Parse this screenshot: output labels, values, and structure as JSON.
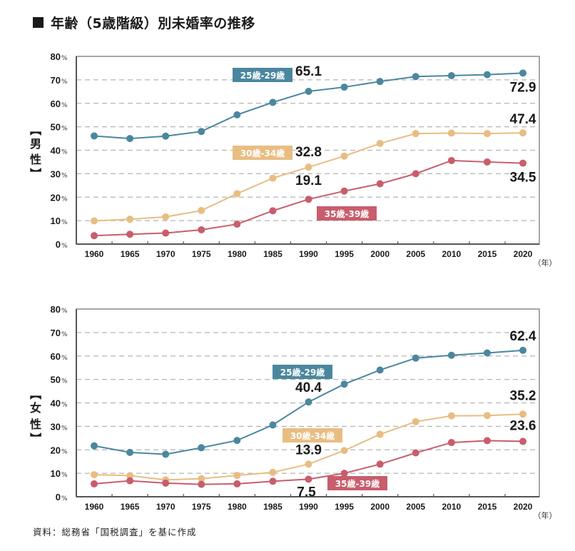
{
  "title": "年齢（5歳階級）別未婚率の推移",
  "source": "資料：総務省「国税調査」を基に作成",
  "colors": {
    "age_25_29": "#4a879f",
    "age_30_34": "#e8bd82",
    "age_35_39": "#c85d6c",
    "grid": "#b5b5b5",
    "frame": "#8a8a8a"
  },
  "chart_data": [
    {
      "type": "line",
      "title": "男性",
      "side_label": [
        "【",
        "男",
        "性",
        "】"
      ],
      "x": [
        1960,
        1965,
        1970,
        1975,
        1980,
        1985,
        1990,
        1995,
        2000,
        2005,
        2010,
        2015,
        2020
      ],
      "x_tick_labels": [
        "1960",
        "1965",
        "1970",
        "1975",
        "1980",
        "1985",
        "1990",
        "1995",
        "2000",
        "2005",
        "2010",
        "2015",
        "2020"
      ],
      "xlabel": "（年）",
      "ylabel": "%",
      "ylim": [
        0,
        80
      ],
      "y_ticks": [
        0,
        10,
        20,
        30,
        40,
        50,
        60,
        70,
        80
      ],
      "y_tick_labels": [
        "0",
        "10",
        "20",
        "30",
        "40",
        "50",
        "60",
        "70",
        "80"
      ],
      "y_tick_suffix": "%",
      "grid": "horizontal dashed",
      "series": [
        {
          "key": "age_25_29",
          "name": "25歳-29歳",
          "values": [
            46.1,
            45.0,
            46.0,
            48.0,
            55.1,
            60.4,
            65.1,
            66.9,
            69.3,
            71.4,
            71.8,
            72.2,
            72.9
          ],
          "annotations": [
            {
              "year": 1990,
              "text": "65.1"
            },
            {
              "year": 2020,
              "text": "72.9"
            }
          ]
        },
        {
          "key": "age_30_34",
          "name": "30歳-34歳",
          "values": [
            9.9,
            10.6,
            11.6,
            14.3,
            21.5,
            28.1,
            32.8,
            37.5,
            42.9,
            47.1,
            47.3,
            47.1,
            47.4
          ],
          "annotations": [
            {
              "year": 1990,
              "text": "32.8"
            },
            {
              "year": 2020,
              "text": "47.4"
            }
          ]
        },
        {
          "key": "age_35_39",
          "name": "35歳-39歳",
          "values": [
            3.6,
            4.2,
            4.7,
            6.1,
            8.5,
            14.2,
            19.1,
            22.6,
            25.7,
            30.0,
            35.6,
            35.0,
            34.5
          ],
          "annotations": [
            {
              "year": 1990,
              "text": "19.1"
            },
            {
              "year": 2020,
              "text": "34.5"
            }
          ]
        }
      ]
    },
    {
      "type": "line",
      "title": "女性",
      "side_label": [
        "【",
        "女",
        "性",
        "】"
      ],
      "x": [
        1960,
        1965,
        1970,
        1975,
        1980,
        1985,
        1990,
        1995,
        2000,
        2005,
        2010,
        2015,
        2020
      ],
      "x_tick_labels": [
        "1960",
        "1965",
        "1970",
        "1975",
        "1980",
        "1985",
        "1990",
        "1995",
        "2000",
        "2005",
        "2010",
        "2015",
        "2020"
      ],
      "xlabel": "（年）",
      "ylabel": "%",
      "ylim": [
        0,
        80
      ],
      "y_ticks": [
        0,
        10,
        20,
        30,
        40,
        50,
        60,
        70,
        80
      ],
      "y_tick_labels": [
        "0",
        "10",
        "20",
        "30",
        "40",
        "50",
        "60",
        "70",
        "80"
      ],
      "y_tick_suffix": "%",
      "grid": "horizontal dashed",
      "series": [
        {
          "key": "age_25_29",
          "name": "25歳-29歳",
          "values": [
            21.7,
            18.9,
            18.1,
            20.9,
            24.0,
            30.6,
            40.4,
            48.0,
            54.0,
            59.1,
            60.3,
            61.3,
            62.4
          ],
          "annotations": [
            {
              "year": 1990,
              "text": "40.4"
            },
            {
              "year": 2020,
              "text": "62.4"
            }
          ]
        },
        {
          "key": "age_30_34",
          "name": "30歳-34歳",
          "values": [
            9.4,
            9.0,
            7.2,
            7.7,
            9.1,
            10.4,
            13.9,
            19.7,
            26.6,
            32.0,
            34.5,
            34.6,
            35.2
          ],
          "annotations": [
            {
              "year": 1990,
              "text": "13.9"
            },
            {
              "year": 2020,
              "text": "35.2"
            }
          ]
        },
        {
          "key": "age_35_39",
          "name": "35歳-39歳",
          "values": [
            5.5,
            6.8,
            5.8,
            5.3,
            5.5,
            6.6,
            7.5,
            10.0,
            13.9,
            18.7,
            23.1,
            23.9,
            23.6
          ],
          "annotations": [
            {
              "year": 1990,
              "text": "7.5"
            },
            {
              "year": 2020,
              "text": "23.6"
            }
          ]
        }
      ]
    }
  ]
}
